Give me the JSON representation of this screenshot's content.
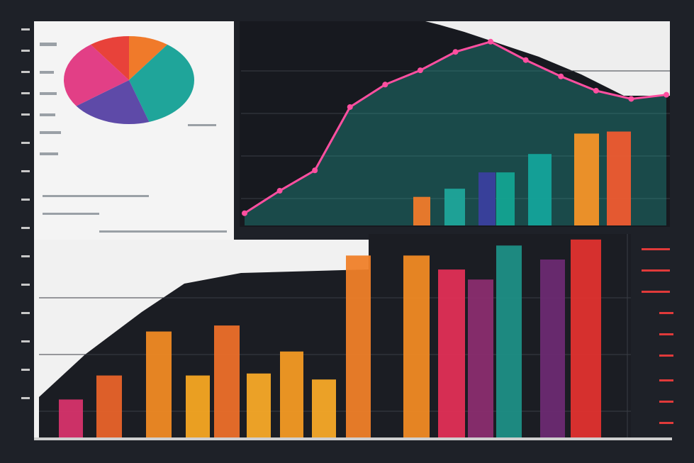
{
  "chart_data": [
    {
      "type": "pie",
      "values": [
        10,
        35,
        20,
        25,
        10
      ],
      "colors": [
        "#f07a2a",
        "#1fa59a",
        "#5e4aa8",
        "#e23f86",
        "#e8423a"
      ]
    },
    {
      "type": "line",
      "values": [
        6,
        17,
        27,
        58,
        69,
        76,
        85,
        90,
        81,
        73,
        66,
        62,
        64
      ],
      "color": "#ff4fa0",
      "ylim": [
        0,
        100
      ]
    },
    {
      "type": "bar",
      "values": [
        14,
        18,
        26,
        26,
        35,
        45,
        46
      ],
      "colors": [
        "#f07a2a",
        "#1fa59a",
        "#3a3f9e",
        "#13a391",
        "#14a39a",
        "#f59327",
        "#ef5a2f"
      ],
      "ylim": [
        0,
        100
      ]
    },
    {
      "type": "bar",
      "values": [
        19,
        31,
        53,
        31,
        56,
        32,
        43,
        29,
        91,
        91,
        84,
        79,
        96,
        89,
        99
      ],
      "colors": [
        "#d6336c",
        "#e8632a",
        "#f08a24",
        "#f5a623",
        "#ec6f2a",
        "#f7a928",
        "#f39a24",
        "#f7a928",
        "#ef7f29",
        "#f08a24",
        "#e02f56",
        "#8a2d6f",
        "#1d8f86",
        "#6b2a72",
        "#e0322f"
      ],
      "ylim": [
        0,
        100
      ]
    }
  ]
}
